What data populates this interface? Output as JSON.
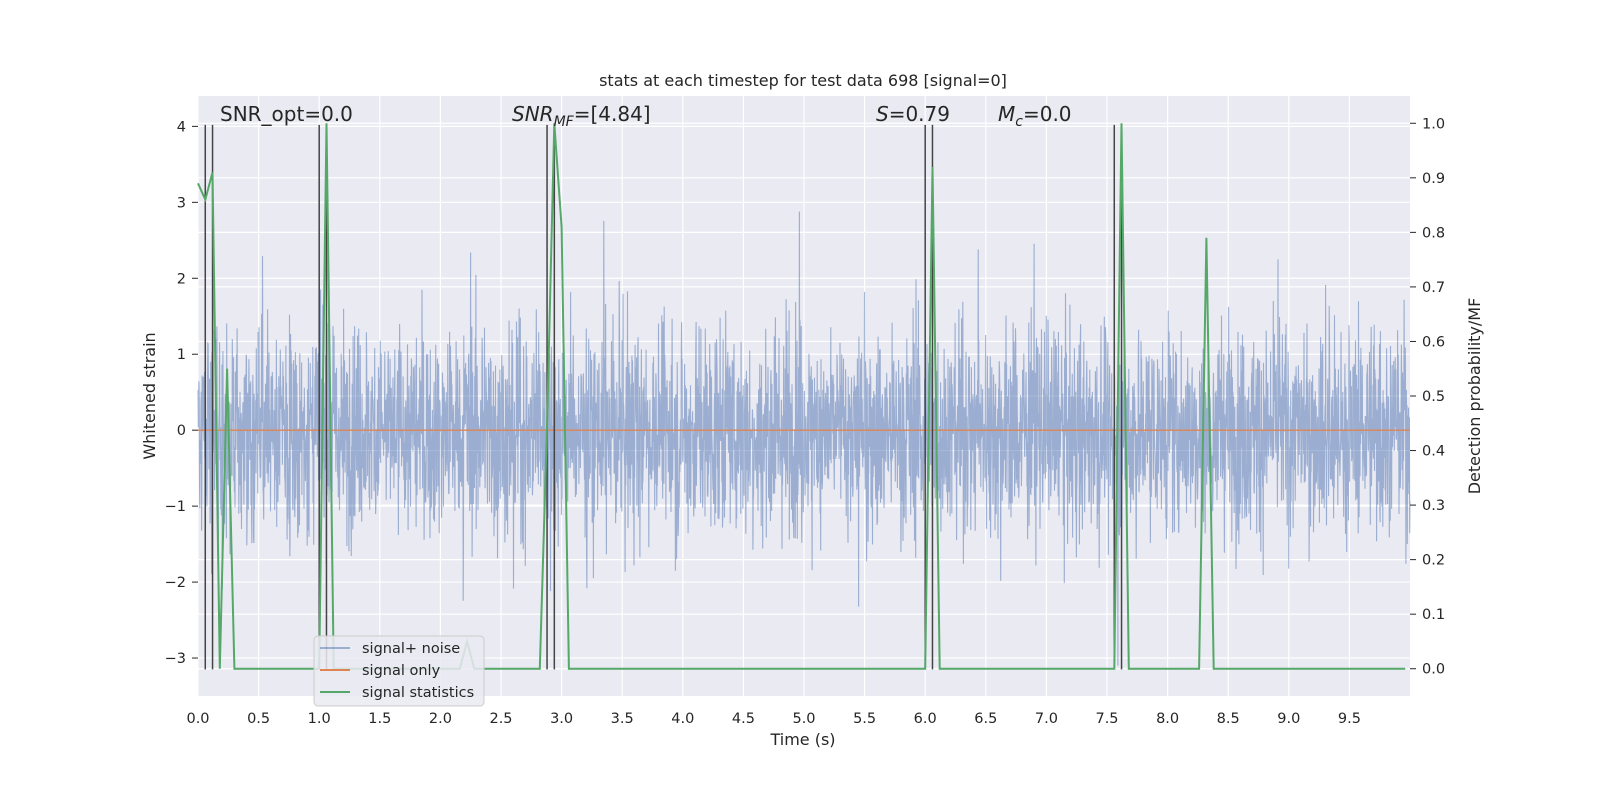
{
  "chart_data": {
    "type": "line",
    "title": "stats at each timestep for test data 698 [signal=0]",
    "xlabel": "Time (s)",
    "ylabel": "Whitened strain",
    "ylabel_right": "Detection probability/MF",
    "xlim": [
      0.0,
      10.0
    ],
    "ylim": [
      -3.5,
      4.4
    ],
    "ylim_right": [
      -0.05,
      1.05
    ],
    "x_ticks": [
      0.0,
      0.5,
      1.0,
      1.5,
      2.0,
      2.5,
      3.0,
      3.5,
      4.0,
      4.5,
      5.0,
      5.5,
      6.0,
      6.5,
      7.0,
      7.5,
      8.0,
      8.5,
      9.0,
      9.5
    ],
    "x_tick_labels": [
      "0.0",
      "0.5",
      "1.0",
      "1.5",
      "2.0",
      "2.5",
      "3.0",
      "3.5",
      "4.0",
      "4.5",
      "5.0",
      "5.5",
      "6.0",
      "6.5",
      "7.0",
      "7.5",
      "8.0",
      "8.5",
      "9.0",
      "9.5"
    ],
    "y_ticks": [
      -3,
      -2,
      -1,
      0,
      1,
      2,
      3,
      4
    ],
    "y_tick_labels": [
      "−3",
      "−2",
      "−1",
      "0",
      "1",
      "2",
      "3",
      "4"
    ],
    "y_right_ticks": [
      0.0,
      0.1,
      0.2,
      0.3,
      0.4,
      0.5,
      0.6,
      0.7,
      0.8,
      0.9,
      1.0
    ],
    "y_right_tick_labels": [
      "0.0",
      "0.1",
      "0.2",
      "0.3",
      "0.4",
      "0.5",
      "0.6",
      "0.7",
      "0.8",
      "0.9",
      "1.0"
    ],
    "grid": true,
    "legend_placement": "lower-left",
    "annotations": [
      {
        "id": "snr-opt",
        "segments": [
          {
            "text": "SNR_opt=0.0",
            "italic": false
          }
        ]
      },
      {
        "id": "snr-mf",
        "segments": [
          {
            "text": "SNR",
            "italic": true
          },
          {
            "text": "MF",
            "italic": true,
            "sub": true
          },
          {
            "text": "=[4.84]",
            "italic": false
          }
        ]
      },
      {
        "id": "s-stat",
        "segments": [
          {
            "text": "S",
            "italic": true
          },
          {
            "text": "=0.79",
            "italic": false
          }
        ]
      },
      {
        "id": "mc-stat",
        "segments": [
          {
            "text": "M",
            "italic": true
          },
          {
            "text": "c",
            "italic": true,
            "sub": true
          },
          {
            "text": "=0.0",
            "italic": false
          }
        ]
      }
    ],
    "vertical_lines": [
      0.06,
      0.12,
      1.0,
      1.06,
      2.88,
      2.94,
      6.0,
      6.06,
      7.56,
      7.62
    ],
    "series": [
      {
        "name": "signal+ noise",
        "color": "#4c72b0",
        "alpha": 0.5,
        "axis": "left",
        "style": "dense-noise",
        "envelope": {
          "typical_low": -1.7,
          "typical_high": 1.85,
          "min": -3.1,
          "max": 3.6
        }
      },
      {
        "name": "signal only",
        "color": "#dd8452",
        "axis": "left",
        "x": [
          0.0,
          10.0
        ],
        "values": [
          0.0,
          0.0
        ]
      },
      {
        "name": "signal statistics",
        "color": "#55a868",
        "axis": "right",
        "x": [
          0.0,
          0.06,
          0.12,
          0.18,
          0.24,
          0.3,
          1.0,
          1.06,
          1.12,
          2.16,
          2.22,
          2.28,
          2.82,
          2.88,
          2.94,
          3.0,
          3.06,
          6.0,
          6.06,
          6.12,
          7.56,
          7.62,
          7.68,
          8.26,
          8.32,
          8.38,
          9.96
        ],
        "values": [
          0.89,
          0.86,
          0.91,
          0.0,
          0.55,
          0.0,
          0.0,
          1.0,
          0.0,
          0.0,
          0.05,
          0.0,
          0.0,
          0.45,
          1.0,
          0.81,
          0.0,
          0.0,
          0.92,
          0.0,
          0.0,
          1.0,
          0.0,
          0.0,
          0.79,
          0.0,
          0.0
        ]
      }
    ]
  }
}
